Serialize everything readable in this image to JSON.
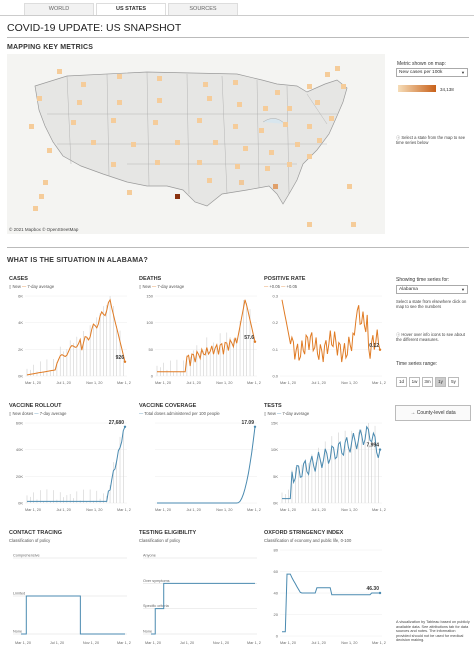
{
  "tabs": [
    "WORLD",
    "US STATES",
    "SOURCES"
  ],
  "title": "COVID-19 UPDATE: US SNAPSHOT",
  "section1": "MAPPING KEY METRICS",
  "section2": "WHAT IS THE SITUATION IN ALABAMA?",
  "map": {
    "credit": "© 2021 Mapbox © OpenStreetMap",
    "metric_label": "Metric shown on map:",
    "metric_value": "New cases per 100k",
    "legend_min": "0",
    "legend_max": "34,138",
    "select_hint": "Select a state from the map to see time series below"
  },
  "controls": {
    "ts_label": "Showing time series for:",
    "ts_value": "Alabama",
    "ts_hint": "Select a state from elsewhere click on map to see the numbers",
    "info_hint": "Hover over info icons to see about the different measures.",
    "range_label": "Time series range:",
    "range_buttons": [
      "1d",
      "1w",
      "3m",
      "1y",
      "5y"
    ],
    "county_button": "→ County-level data"
  },
  "legend_items": {
    "new": "New",
    "avg": "7-day average",
    "pos1": "+0.05",
    "pos2": "+0.05",
    "new_doses": "New doses",
    "coverage": "Total doses administered per 100 people",
    "policy": "Classification of policy",
    "oxford": "Classification of economy and public life, 0-100"
  },
  "charts": {
    "cases": {
      "title": "CASES",
      "end_value": "926",
      "yticks": [
        "6K",
        "4K",
        "2K",
        "0K"
      ],
      "xticks": [
        "Mar 1, 20",
        "Jul 1, 20",
        "Nov 1, 20",
        "Mar 1, 21"
      ]
    },
    "deaths": {
      "title": "DEATHS",
      "end_value": "57.6",
      "yticks": [
        "150",
        "100",
        "50",
        "0"
      ],
      "xticks": [
        "Mar 1, 20",
        "Jul 1, 20",
        "Nov 1, 20",
        "Mar 1, 21"
      ]
    },
    "positive": {
      "title": "POSITIVE RATE",
      "end_value": "0.12",
      "yticks": [
        "0.3",
        "0.2",
        "0.1",
        "0.0"
      ],
      "xticks": [
        "Mar 1, 20",
        "Jul 1, 20",
        "Nov 1, 20",
        "Mar 1, 21"
      ]
    },
    "vaccine": {
      "title": "VACCINE ROLLOUT",
      "end_value": "27,680",
      "yticks": [
        "60K",
        "40K",
        "20K",
        "0K"
      ],
      "xticks": [
        "Mar 1, 20",
        "Jul 1, 20",
        "Nov 1, 20",
        "Mar 1, 21"
      ]
    },
    "coverage": {
      "title": "VACCINE COVERAGE",
      "end_value": "17.09",
      "yticks": [
        "",
        "",
        "",
        ""
      ],
      "xticks": [
        "Mar 1, 20",
        "Jul 1, 20",
        "Nov 1, 20",
        "Mar 1, 21"
      ]
    },
    "tests": {
      "title": "TESTS",
      "end_value": "7,994",
      "yticks": [
        "15K",
        "10K",
        "5K",
        "0K"
      ],
      "xticks": [
        "Mar 1, 20",
        "Jul 1, 20",
        "Nov 1, 20",
        "Mar 1, 21"
      ]
    },
    "contact": {
      "title": "CONTACT TRACING",
      "levels": [
        "Comprehensive",
        "Limited",
        "None"
      ],
      "xticks": [
        "Mar 1, 20",
        "Jul 1, 20",
        "Nov 1, 20",
        "Mar 1, 21"
      ]
    },
    "testing": {
      "title": "TESTING ELIGIBILITY",
      "levels": [
        "Anyone",
        "Over symptoms",
        "Specific criteria",
        "None"
      ],
      "xticks": [
        "Mar 1, 20",
        "Jul 1, 20",
        "Nov 1, 20",
        "Mar 1, 21"
      ]
    },
    "oxford": {
      "title": "OXFORD STRINGENCY INDEX",
      "end_value": "46.30",
      "yticks": [
        "80",
        "60",
        "40",
        "20",
        "0"
      ],
      "xticks": [
        "Mar 1, 20",
        "Jul 1, 20",
        "Nov 1, 20",
        "Mar 1, 21"
      ]
    }
  },
  "footnote": "A visualization by Tableau based on publicly available data. See attributions tab for data sources and notes. The information provided should not be used for medical decision making.",
  "colors": {
    "orange": "#e07b24",
    "blue": "#6a9fc0",
    "line": "#4a8ab0",
    "bars": "#c9c9c9",
    "heat_low": "#f6ddb8",
    "heat_high": "#c8611a"
  }
}
